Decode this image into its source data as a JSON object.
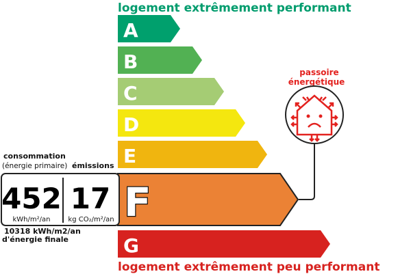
{
  "top_label": "logement extrêmement performant",
  "bottom_label": "logement extrêmement peu performant",
  "top_color": "#009c6d",
  "bottom_color": "#d7221f",
  "classes": [
    {
      "letter": "A",
      "color": "#00a06d"
    },
    {
      "letter": "B",
      "color": "#52b153"
    },
    {
      "letter": "C",
      "color": "#a5cc74"
    },
    {
      "letter": "D",
      "color": "#f4e70f"
    },
    {
      "letter": "E",
      "color": "#f0b50f"
    },
    {
      "letter": "F",
      "color": "#eb8235"
    },
    {
      "letter": "G",
      "color": "#d7221f"
    }
  ],
  "current_class": "F",
  "consumption": {
    "title": "consommation",
    "subtitle": "(énergie primaire)",
    "value": "452",
    "unit": "kWh/m²/an",
    "final_line1": "10318 kWh/m2/an",
    "final_line2": "d'énergie finale"
  },
  "emissions": {
    "title": "émissions",
    "value": "17",
    "unit": "kg CO₂/m²/an"
  },
  "passoire": {
    "line1": "passoire",
    "line2": "énergétique",
    "icon": "leaky-house-icon",
    "color": "#e3221f"
  }
}
